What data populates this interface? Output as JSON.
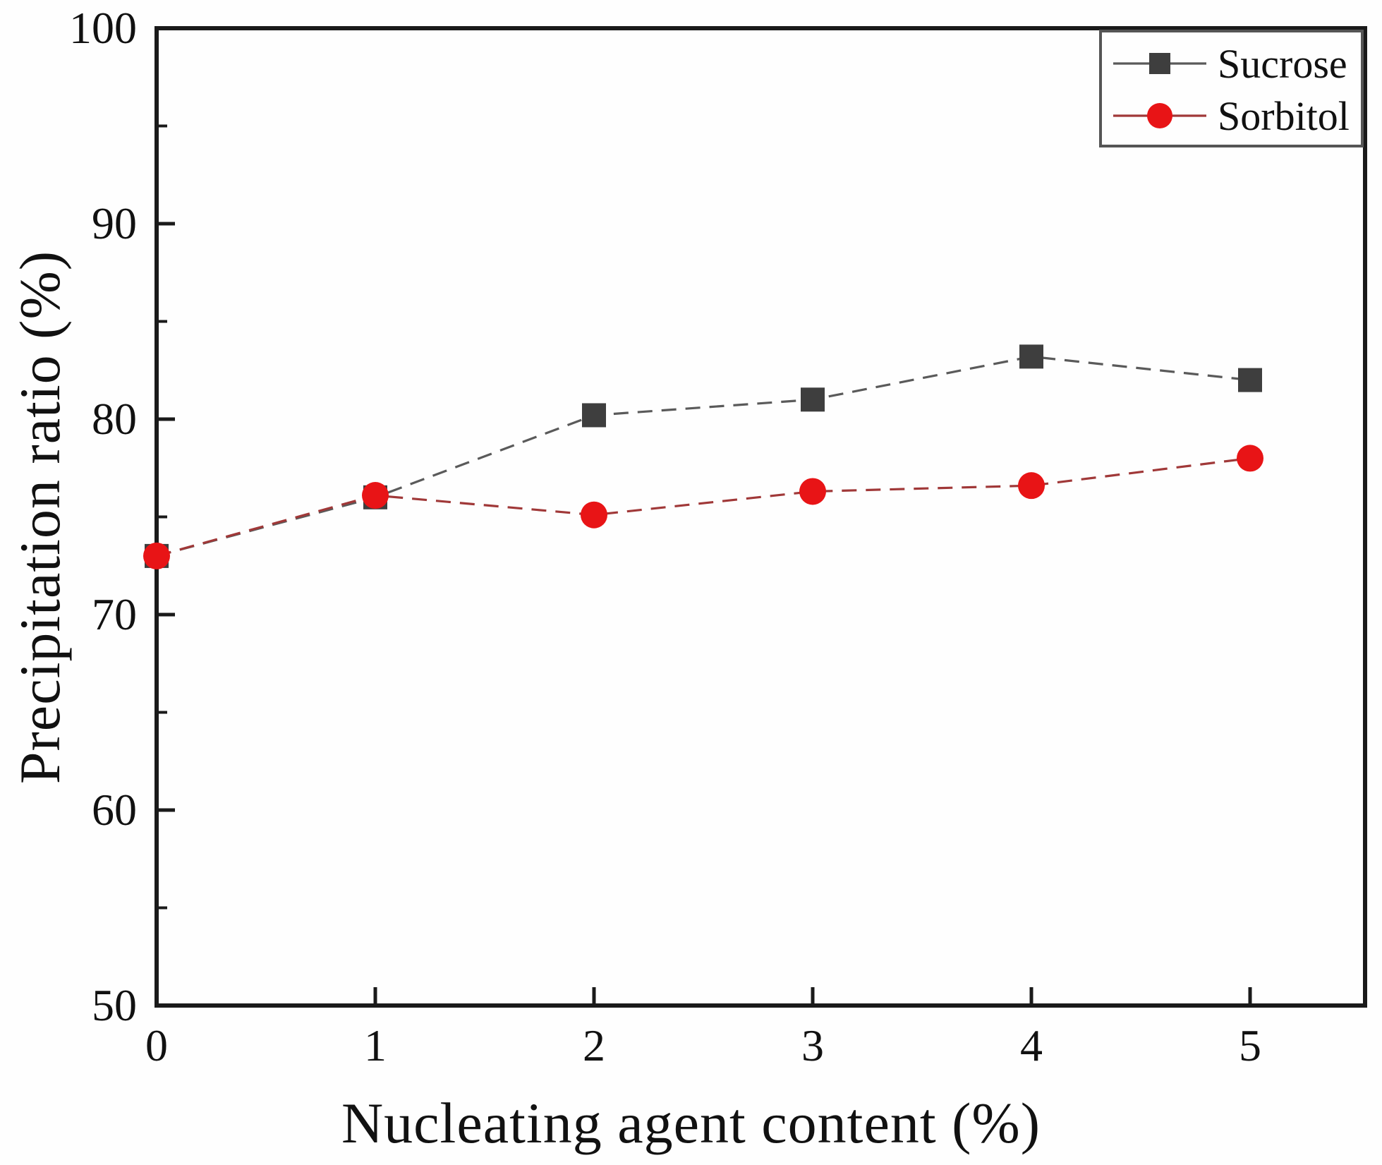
{
  "chart_data": {
    "type": "line",
    "title": "",
    "xlabel": "Nucleating agent content (%)",
    "ylabel": "Precipitation ratio (%)",
    "x": [
      0,
      1,
      2,
      3,
      4,
      5
    ],
    "xlim": [
      0,
      5.53
    ],
    "ylim": [
      50,
      100
    ],
    "x_ticks": [
      0,
      1,
      2,
      3,
      4,
      5
    ],
    "y_major_ticks": [
      50,
      60,
      70,
      80,
      90,
      100
    ],
    "y_minor_ticks": [
      55,
      65,
      75,
      85,
      95
    ],
    "grid": false,
    "legend_position": "top-right",
    "frame_color": "#1a1a1a",
    "series": [
      {
        "name": "Sucrose",
        "marker": "square",
        "marker_color": "#3e3e3e",
        "line_color": "#5a5a5a",
        "line_style": "dashed",
        "values": [
          73.0,
          76.0,
          80.2,
          81.0,
          83.2,
          82.0
        ]
      },
      {
        "name": "Sorbitol",
        "marker": "circle",
        "marker_color": "#e81416",
        "line_color": "#a03838",
        "line_style": "dashed",
        "values": [
          73.0,
          76.1,
          75.1,
          76.3,
          76.6,
          78.0
        ]
      }
    ]
  }
}
